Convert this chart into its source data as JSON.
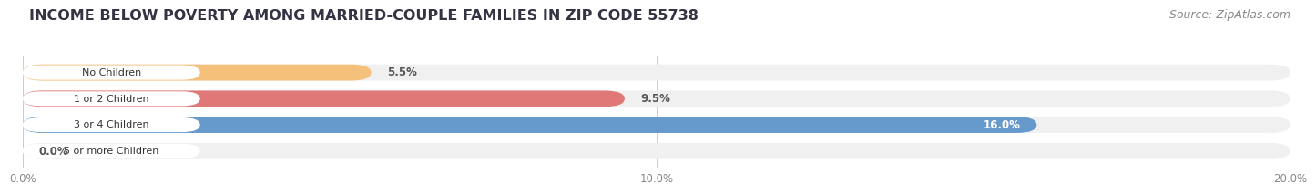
{
  "title": "INCOME BELOW POVERTY AMONG MARRIED-COUPLE FAMILIES IN ZIP CODE 55738",
  "source": "Source: ZipAtlas.com",
  "categories": [
    "No Children",
    "1 or 2 Children",
    "3 or 4 Children",
    "5 or more Children"
  ],
  "values": [
    5.5,
    9.5,
    16.0,
    0.0
  ],
  "bar_colors": [
    "#f5c07a",
    "#e07878",
    "#6699cc",
    "#c8a8d8"
  ],
  "bg_colors": [
    "#f0f0f0",
    "#f0f0f0",
    "#f0f0f0",
    "#f0f0f0"
  ],
  "xlim": [
    0,
    20
  ],
  "xticks": [
    0.0,
    10.0,
    20.0
  ],
  "xtick_labels": [
    "0.0%",
    "10.0%",
    "20.0%"
  ],
  "title_fontsize": 11.5,
  "source_fontsize": 9,
  "bar_height": 0.62,
  "fig_width": 14.06,
  "fig_height": 2.33,
  "background_color": "#ffffff",
  "value_label_color_inside": "#ffffff",
  "value_label_color_outside": "#555555"
}
